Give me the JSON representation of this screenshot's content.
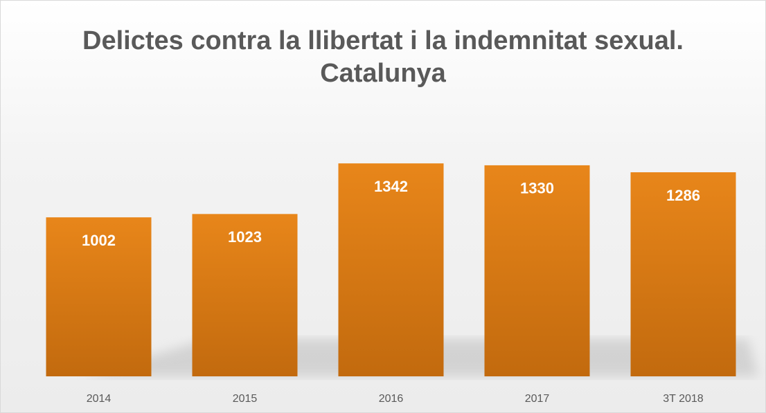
{
  "chart_data": {
    "type": "bar",
    "title": "Delictes contra la llibertat i la indemnitat sexual. Catalunya",
    "categories": [
      "2014",
      "2015",
      "2016",
      "2017",
      "3T 2018"
    ],
    "values": [
      1002,
      1023,
      1342,
      1330,
      1286
    ],
    "color": "#e0801a",
    "ylim": [
      0,
      1600
    ]
  }
}
